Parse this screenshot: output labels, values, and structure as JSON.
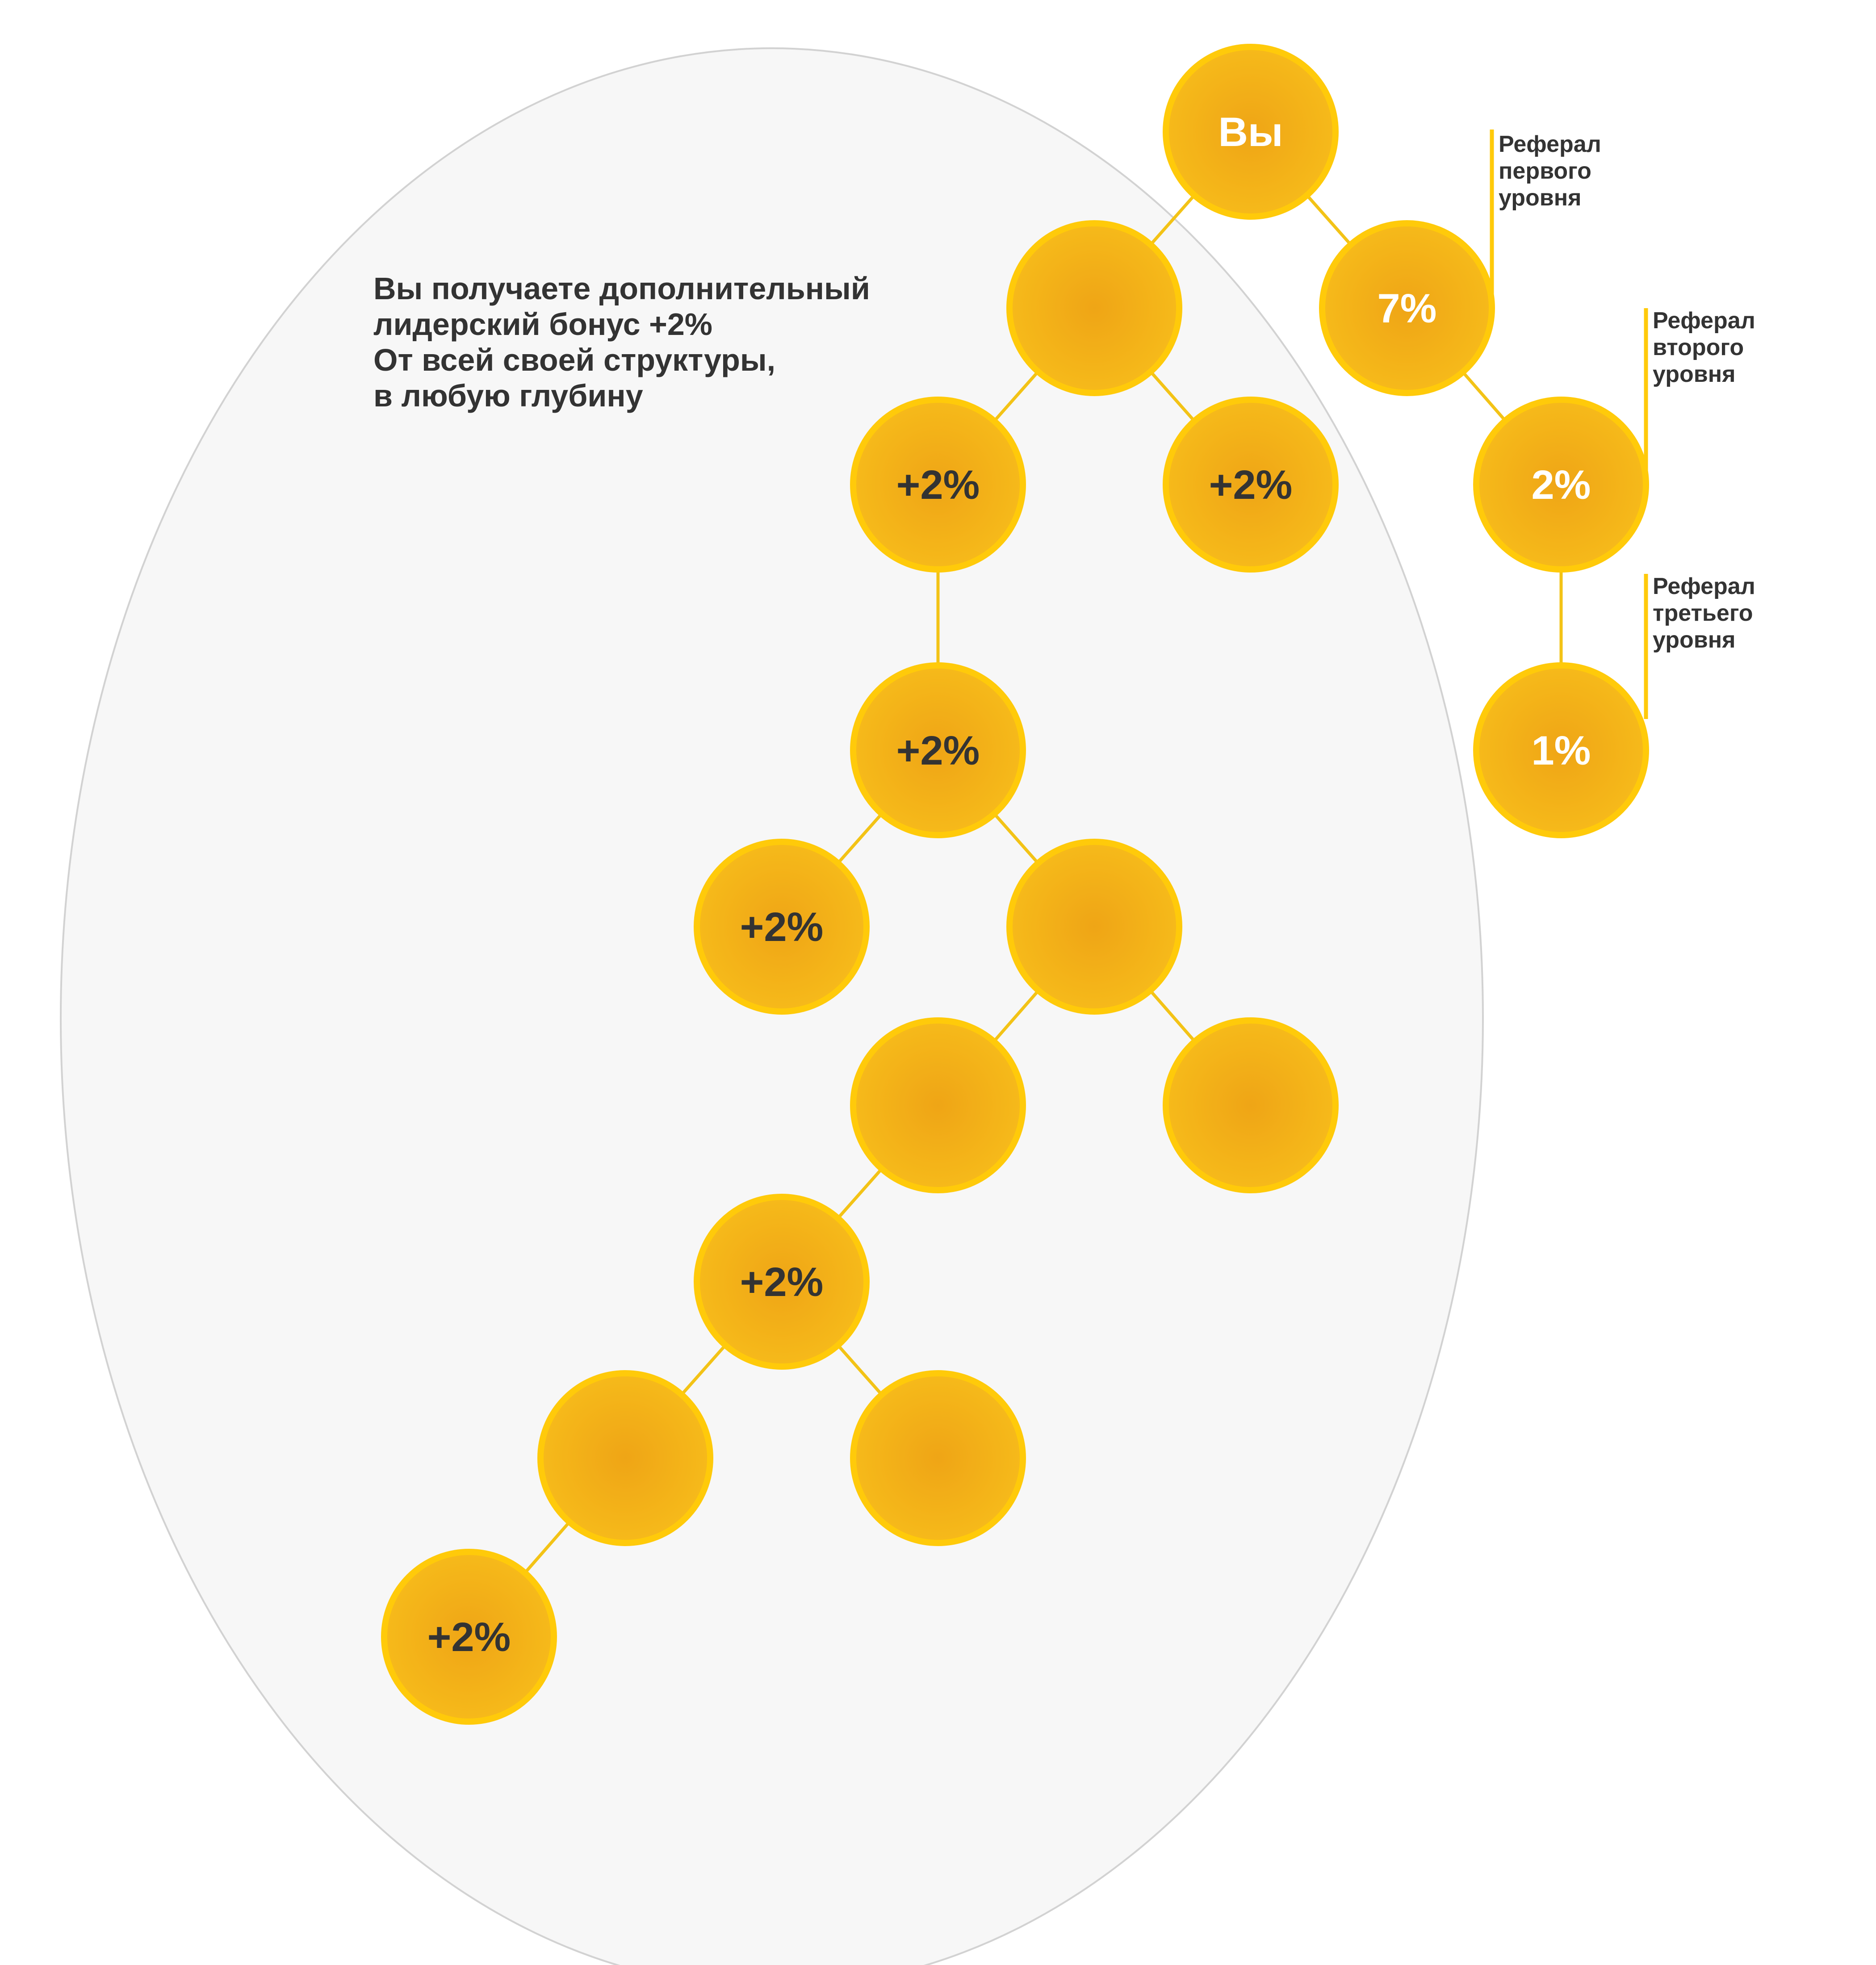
{
  "colors": {
    "node_fill": "#F6BA1A",
    "node_center": "#EFA516",
    "node_border": "#FFCA0A",
    "connector": "#F3C316",
    "label_dark": "#333333",
    "label_light": "#FFFFFF",
    "ellipse_fill": "#F7F7F7",
    "ellipse_stroke": "#D2D2D2"
  },
  "info_text": {
    "lines": [
      "Вы получаете дополнительный",
      "лидерский бонус +2%",
      "От всей своей структуры,",
      "в любую глубину"
    ]
  },
  "nodes": [
    {
      "id": "you",
      "label": "Вы",
      "label_style": "light"
    },
    {
      "id": "left-l1",
      "label": "",
      "label_style": "dark"
    },
    {
      "id": "ref-l1",
      "label": "7%",
      "label_style": "light"
    },
    {
      "id": "left-l2-a",
      "label": "+2%",
      "label_style": "dark"
    },
    {
      "id": "left-l2-b",
      "label": "+2%",
      "label_style": "dark"
    },
    {
      "id": "ref-l2",
      "label": "2%",
      "label_style": "light"
    },
    {
      "id": "left-l3",
      "label": "+2%",
      "label_style": "dark"
    },
    {
      "id": "ref-l3",
      "label": "1%",
      "label_style": "light"
    },
    {
      "id": "left-l4-a",
      "label": "+2%",
      "label_style": "dark"
    },
    {
      "id": "left-l4-b",
      "label": "",
      "label_style": "dark"
    },
    {
      "id": "left-l5-a",
      "label": "",
      "label_style": "dark"
    },
    {
      "id": "left-l5-b",
      "label": "",
      "label_style": "dark"
    },
    {
      "id": "left-l6",
      "label": "+2%",
      "label_style": "dark"
    },
    {
      "id": "left-l7-a",
      "label": "",
      "label_style": "dark"
    },
    {
      "id": "left-l7-b",
      "label": "",
      "label_style": "dark"
    },
    {
      "id": "left-l8",
      "label": "+2%",
      "label_style": "dark"
    }
  ],
  "edges": [
    [
      "you",
      "left-l1"
    ],
    [
      "you",
      "ref-l1"
    ],
    [
      "left-l1",
      "left-l2-a"
    ],
    [
      "left-l1",
      "left-l2-b"
    ],
    [
      "ref-l1",
      "ref-l2"
    ],
    [
      "ref-l2",
      "ref-l3"
    ],
    [
      "left-l2-a",
      "left-l3"
    ],
    [
      "left-l3",
      "left-l4-a"
    ],
    [
      "left-l3",
      "left-l4-b"
    ],
    [
      "left-l4-b",
      "left-l5-a"
    ],
    [
      "left-l4-b",
      "left-l5-b"
    ],
    [
      "left-l5-a",
      "left-l6"
    ],
    [
      "left-l6",
      "left-l7-a"
    ],
    [
      "left-l6",
      "left-l7-b"
    ],
    [
      "left-l7-a",
      "left-l8"
    ]
  ],
  "side_labels": [
    {
      "id": "level-1",
      "lines": [
        "Реферал",
        "первого",
        "уровня"
      ]
    },
    {
      "id": "level-2",
      "lines": [
        "Реферал",
        "второго",
        "уровня"
      ]
    },
    {
      "id": "level-3",
      "lines": [
        "Реферал",
        "третьего",
        "уровня"
      ]
    }
  ]
}
